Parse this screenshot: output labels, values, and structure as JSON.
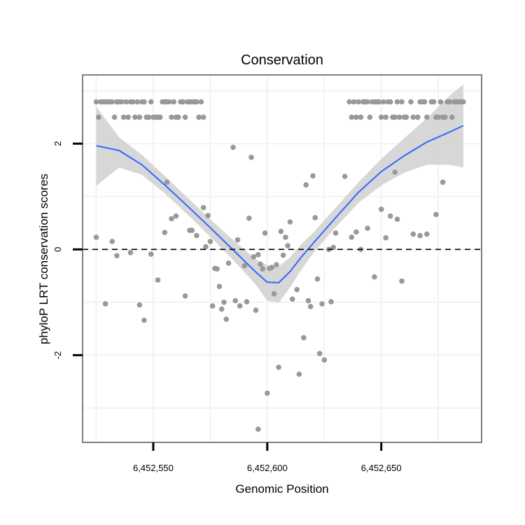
{
  "chart_data": {
    "type": "scatter",
    "title": "Conservation",
    "xlabel": "Genomic Position",
    "ylabel": "phyloP LRT conservation scores",
    "xlim": [
      6452519,
      6452694
    ],
    "ylim": [
      -3.65,
      3.3
    ],
    "x_ticks": [
      6452550,
      6452600,
      6452650
    ],
    "x_tick_labels": [
      "6,452,550",
      "6,452,600",
      "6,452,650"
    ],
    "y_ticks": [
      -2,
      0,
      2
    ],
    "y_tick_labels": [
      "-2",
      "0",
      "2"
    ],
    "reference_line": {
      "y": 0,
      "style": "dashed"
    },
    "colors": {
      "points": "#999999",
      "smooth": "#3366ff",
      "ribbon": "#d3d3d3",
      "panel_border": "#7f7f7f",
      "grid": "#f2f2f2"
    },
    "series": [
      {
        "name": "scores",
        "points": [
          [
            6452525,
            2.79
          ],
          [
            6452526,
            2.5
          ],
          [
            6452527,
            2.79
          ],
          [
            6452528,
            2.79
          ],
          [
            6452529,
            2.79
          ],
          [
            6452530,
            2.79
          ],
          [
            6452531,
            2.79
          ],
          [
            6452532,
            2.79
          ],
          [
            6452533,
            2.5
          ],
          [
            6452534,
            2.79
          ],
          [
            6452535,
            2.79
          ],
          [
            6452536,
            2.79
          ],
          [
            6452537,
            2.5
          ],
          [
            6452538,
            2.79
          ],
          [
            6452539,
            2.5
          ],
          [
            6452540,
            2.79
          ],
          [
            6452541,
            2.79
          ],
          [
            6452542,
            2.5
          ],
          [
            6452543,
            2.79
          ],
          [
            6452544,
            2.5
          ],
          [
            6452545,
            2.79
          ],
          [
            6452546,
            2.79
          ],
          [
            6452547,
            2.5
          ],
          [
            6452548,
            2.5
          ],
          [
            6452549,
            2.79
          ],
          [
            6452550,
            2.5
          ],
          [
            6452551,
            2.5
          ],
          [
            6452552,
            2.5
          ],
          [
            6452553,
            2.5
          ],
          [
            6452554,
            2.79
          ],
          [
            6452555,
            2.79
          ],
          [
            6452556,
            2.79
          ],
          [
            6452557,
            2.79
          ],
          [
            6452558,
            2.5
          ],
          [
            6452559,
            2.79
          ],
          [
            6452560,
            2.5
          ],
          [
            6452561,
            2.5
          ],
          [
            6452562,
            2.79
          ],
          [
            6452563,
            2.79
          ],
          [
            6452564,
            2.5
          ],
          [
            6452565,
            2.79
          ],
          [
            6452566,
            2.79
          ],
          [
            6452567,
            2.79
          ],
          [
            6452568,
            2.79
          ],
          [
            6452569,
            2.79
          ],
          [
            6452570,
            2.5
          ],
          [
            6452571,
            2.79
          ],
          [
            6452572,
            2.5
          ],
          [
            6452636,
            2.79
          ],
          [
            6452637,
            2.5
          ],
          [
            6452638,
            2.79
          ],
          [
            6452639,
            2.5
          ],
          [
            6452640,
            2.79
          ],
          [
            6452641,
            2.5
          ],
          [
            6452642,
            2.79
          ],
          [
            6452643,
            2.79
          ],
          [
            6452644,
            2.79
          ],
          [
            6452645,
            2.5
          ],
          [
            6452646,
            2.79
          ],
          [
            6452647,
            2.79
          ],
          [
            6452648,
            2.79
          ],
          [
            6452649,
            2.79
          ],
          [
            6452650,
            2.5
          ],
          [
            6452651,
            2.79
          ],
          [
            6452652,
            2.5
          ],
          [
            6452653,
            2.79
          ],
          [
            6452654,
            2.79
          ],
          [
            6452655,
            2.5
          ],
          [
            6452656,
            2.5
          ],
          [
            6452657,
            2.79
          ],
          [
            6452658,
            2.5
          ],
          [
            6452659,
            2.79
          ],
          [
            6452660,
            2.5
          ],
          [
            6452661,
            2.5
          ],
          [
            6452663,
            2.79
          ],
          [
            6452664,
            2.5
          ],
          [
            6452666,
            2.5
          ],
          [
            6452667,
            2.79
          ],
          [
            6452668,
            2.79
          ],
          [
            6452669,
            2.79
          ],
          [
            6452670,
            2.5
          ],
          [
            6452672,
            2.79
          ],
          [
            6452673,
            2.79
          ],
          [
            6452674,
            2.5
          ],
          [
            6452675,
            2.5
          ],
          [
            6452676,
            2.79
          ],
          [
            6452677,
            2.5
          ],
          [
            6452678,
            2.5
          ],
          [
            6452679,
            2.79
          ],
          [
            6452680,
            2.79
          ],
          [
            6452681,
            2.5
          ],
          [
            6452682,
            2.79
          ],
          [
            6452683,
            2.79
          ],
          [
            6452684,
            2.79
          ],
          [
            6452685,
            2.79
          ],
          [
            6452686,
            2.79
          ],
          [
            6452525,
            0.23
          ],
          [
            6452529,
            -1.03
          ],
          [
            6452532,
            0.15
          ],
          [
            6452534,
            -0.12
          ],
          [
            6452540,
            -0.06
          ],
          [
            6452544,
            -1.05
          ],
          [
            6452546,
            -1.34
          ],
          [
            6452549,
            -0.09
          ],
          [
            6452552,
            -0.58
          ],
          [
            6452555,
            0.32
          ],
          [
            6452556,
            1.27
          ],
          [
            6452558,
            0.58
          ],
          [
            6452560,
            0.63
          ],
          [
            6452564,
            -0.88
          ],
          [
            6452566,
            0.36
          ],
          [
            6452567,
            0.36
          ],
          [
            6452569,
            0.26
          ],
          [
            6452572,
            0.79
          ],
          [
            6452573,
            0.05
          ],
          [
            6452574,
            0.64
          ],
          [
            6452575,
            0.15
          ],
          [
            6452576,
            -1.07
          ],
          [
            6452577,
            -0.36
          ],
          [
            6452578,
            -0.37
          ],
          [
            6452579,
            -0.7
          ],
          [
            6452580,
            -1.13
          ],
          [
            6452581,
            -1.0
          ],
          [
            6452582,
            -1.32
          ],
          [
            6452583,
            -0.26
          ],
          [
            6452585,
            1.93
          ],
          [
            6452586,
            -0.97
          ],
          [
            6452587,
            0.18
          ],
          [
            6452588,
            -1.07
          ],
          [
            6452590,
            -0.31
          ],
          [
            6452591,
            -0.99
          ],
          [
            6452592,
            0.59
          ],
          [
            6452593,
            1.74
          ],
          [
            6452594,
            -0.14
          ],
          [
            6452595,
            -1.15
          ],
          [
            6452596,
            -0.1
          ],
          [
            6452597,
            -0.28
          ],
          [
            6452598,
            -0.37
          ],
          [
            6452599,
            0.31
          ],
          [
            6452600,
            -2.72
          ],
          [
            6452601,
            -0.36
          ],
          [
            6452602,
            -0.34
          ],
          [
            6452603,
            -0.84
          ],
          [
            6452604,
            -0.29
          ],
          [
            6452605,
            -2.23
          ],
          [
            6452606,
            0.34
          ],
          [
            6452607,
            -0.11
          ],
          [
            6452608,
            0.23
          ],
          [
            6452609,
            0.07
          ],
          [
            6452610,
            0.52
          ],
          [
            6452611,
            -0.94
          ],
          [
            6452613,
            -0.76
          ],
          [
            6452614,
            -2.36
          ],
          [
            6452616,
            -1.67
          ],
          [
            6452617,
            1.22
          ],
          [
            6452618,
            -0.97
          ],
          [
            6452619,
            -1.08
          ],
          [
            6452620,
            1.39
          ],
          [
            6452621,
            0.6
          ],
          [
            6452622,
            -0.56
          ],
          [
            6452623,
            -1.97
          ],
          [
            6452624,
            -1.03
          ],
          [
            6452625,
            -2.09
          ],
          [
            6452627,
            0.0
          ],
          [
            6452628,
            -0.99
          ],
          [
            6452629,
            0.04
          ],
          [
            6452630,
            0.31
          ],
          [
            6452634,
            1.38
          ],
          [
            6452637,
            0.23
          ],
          [
            6452639,
            0.33
          ],
          [
            6452641,
            0.0
          ],
          [
            6452644,
            0.4
          ],
          [
            6452647,
            -0.52
          ],
          [
            6452650,
            0.76
          ],
          [
            6452652,
            0.22
          ],
          [
            6452654,
            0.63
          ],
          [
            6452656,
            1.46
          ],
          [
            6452657,
            0.57
          ],
          [
            6452659,
            -0.6
          ],
          [
            6452664,
            0.29
          ],
          [
            6452667,
            0.26
          ],
          [
            6452670,
            0.29
          ],
          [
            6452674,
            0.66
          ],
          [
            6452677,
            1.27
          ],
          [
            6452596,
            -3.4
          ]
        ]
      }
    ],
    "smooth": {
      "name": "loess",
      "x": [
        6452525,
        6452535,
        6452545,
        6452555,
        6452565,
        6452575,
        6452585,
        6452595,
        6452600,
        6452605,
        6452610,
        6452615,
        6452620,
        6452630,
        6452640,
        6452650,
        6452660,
        6452670,
        6452680,
        6452686
      ],
      "y": [
        1.96,
        1.87,
        1.6,
        1.22,
        0.82,
        0.41,
        -0.01,
        -0.43,
        -0.62,
        -0.63,
        -0.42,
        -0.14,
        0.11,
        0.6,
        1.08,
        1.47,
        1.77,
        2.03,
        2.22,
        2.34
      ],
      "ymin": [
        1.2,
        1.55,
        1.41,
        1.06,
        0.66,
        0.24,
        -0.2,
        -0.67,
        -0.97,
        -1.01,
        -0.72,
        -0.38,
        -0.08,
        0.42,
        0.88,
        1.21,
        1.45,
        1.6,
        1.6,
        1.55
      ],
      "ymax": [
        2.7,
        2.12,
        1.79,
        1.39,
        0.98,
        0.57,
        0.18,
        -0.19,
        -0.3,
        -0.32,
        -0.15,
        0.1,
        0.31,
        0.79,
        1.27,
        1.71,
        2.1,
        2.48,
        2.91,
        3.12
      ]
    }
  }
}
